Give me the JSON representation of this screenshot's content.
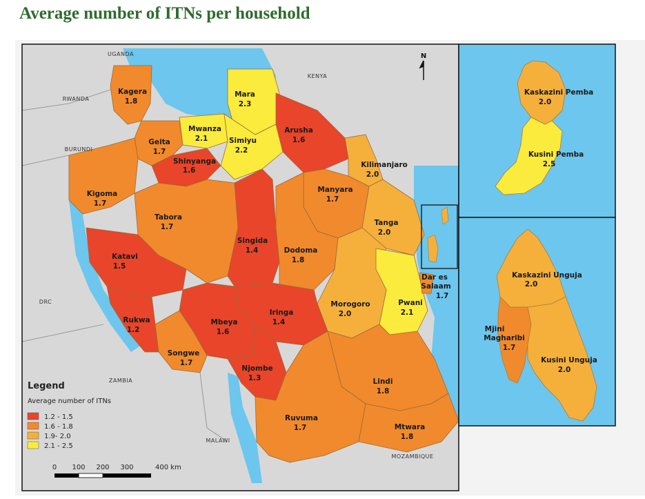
{
  "title": "Average number of ITNs per household",
  "colors": {
    "c1": "#e8452a",
    "c2": "#f18a2c",
    "c3": "#f5b03c",
    "c4": "#fbeb3c",
    "water": "#6cc6ee",
    "land": "#d8d8d8"
  },
  "countries": {
    "uganda": "UGANDA",
    "kenya": "KENYA",
    "rwanda": "RWANDA",
    "burundi": "BURUNDI",
    "drc": "DRC",
    "zambia": "ZAMBIA",
    "malawi": "MALAWI",
    "mozambique": "MOZAMBIQUE"
  },
  "north": "N",
  "regions": {
    "kagera": {
      "name": "Kagera",
      "value": "1.8"
    },
    "mara": {
      "name": "Mara",
      "value": "2.3"
    },
    "mwanza": {
      "name": "Mwanza",
      "value": "2.1"
    },
    "simiyu": {
      "name": "Simiyu",
      "value": "2.2"
    },
    "arusha": {
      "name": "Arusha",
      "value": "1.6"
    },
    "geita": {
      "name": "Geita",
      "value": "1.7"
    },
    "shinyanga": {
      "name": "Shinyanga",
      "value": "1.6"
    },
    "kilimanjaro": {
      "name": "Kilimanjaro",
      "value": "2.0"
    },
    "kigoma": {
      "name": "Kigoma",
      "value": "1.7"
    },
    "manyara": {
      "name": "Manyara",
      "value": "1.7"
    },
    "tabora": {
      "name": "Tabora",
      "value": "1.7"
    },
    "tanga": {
      "name": "Tanga",
      "value": "2.0"
    },
    "singida": {
      "name": "Singida",
      "value": "1.4"
    },
    "dodoma": {
      "name": "Dodoma",
      "value": "1.8"
    },
    "katavi": {
      "name": "Katavi",
      "value": "1.5"
    },
    "dar1": "Dar es",
    "dar2": "Salaam",
    "darval": "1.7",
    "morogoro": {
      "name": "Morogoro",
      "value": "2.0"
    },
    "pwani": {
      "name": "Pwani",
      "value": "2.1"
    },
    "iringa": {
      "name": "Iringa",
      "value": "1.4"
    },
    "rukwa": {
      "name": "Rukwa",
      "value": "1.2"
    },
    "mbeya": {
      "name": "Mbeya",
      "value": "1.6"
    },
    "songwe": {
      "name": "Songwe",
      "value": "1.7"
    },
    "njombe": {
      "name": "Njombe",
      "value": "1.3"
    },
    "lindi": {
      "name": "Lindi",
      "value": "1.8"
    },
    "ruvuma": {
      "name": "Ruvuma",
      "value": "1.7"
    },
    "mtwara": {
      "name": "Mtwara",
      "value": "1.8"
    }
  },
  "insets": {
    "kaskazini_pemba": {
      "name": "Kaskazini Pemba",
      "value": "2.0"
    },
    "kusini_pemba": {
      "name": "Kusini Pemba",
      "value": "2.5"
    },
    "kaskazini_unguja": {
      "name": "Kaskazini Unguja",
      "value": "2.0"
    },
    "mjini1": "Mjini",
    "mjini2": "Magharibi",
    "mjini_value": "1.7",
    "kusini_unguja": {
      "name": "Kusini Unguja",
      "value": "2.0"
    }
  },
  "legend": {
    "title": "Legend",
    "subtitle": "Average number of ITNs",
    "items": [
      {
        "label": "1.2 - 1.5",
        "color": "#e8452a"
      },
      {
        "label": "1.6 - 1.8",
        "color": "#f18a2c"
      },
      {
        "label": "1.9- 2.0",
        "color": "#f5b03c"
      },
      {
        "label": "2.1 - 2.5",
        "color": "#fbeb3c"
      }
    ]
  },
  "scale": {
    "labels": [
      "0",
      "100",
      "200",
      "300",
      "400 km"
    ]
  }
}
